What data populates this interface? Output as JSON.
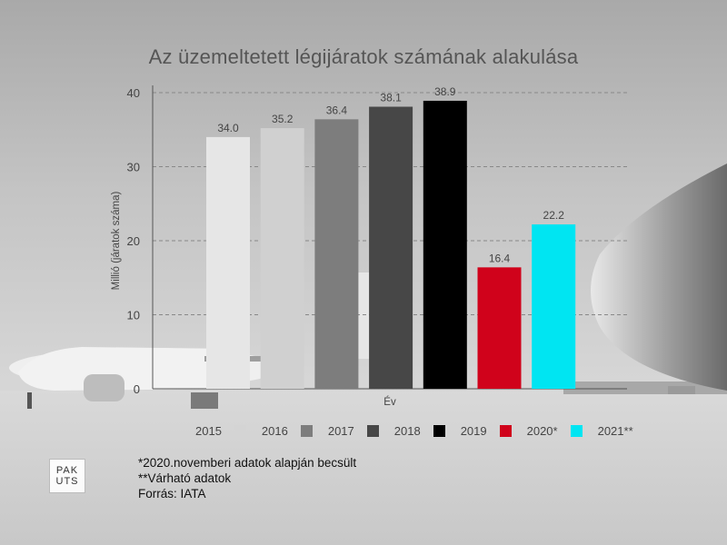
{
  "title": "Az üzemeltetett légijáratok számának alakulása",
  "chart_data": {
    "type": "bar",
    "title": "Az üzemeltetett légijáratok számának alakulása",
    "xlabel": "Év",
    "ylabel": "Millió (járatok száma)",
    "ylim": [
      0,
      40
    ],
    "yticks": [
      0,
      10,
      20,
      30,
      40
    ],
    "grid": true,
    "legend_position": "bottom",
    "categories": [
      "2015",
      "2016",
      "2017",
      "2018",
      "2019",
      "2020*",
      "2021**"
    ],
    "values": [
      34.0,
      35.2,
      36.4,
      38.1,
      38.9,
      16.4,
      22.2
    ],
    "value_labels": [
      "34.0",
      "35.2",
      "36.4",
      "38.1",
      "38.9",
      "16.4",
      "22.2"
    ],
    "colors": [
      "#e6e6e6",
      "#d0d0d0",
      "#7d7d7d",
      "#474747",
      "#000000",
      "#d0021b",
      "#00e5f2"
    ]
  },
  "legend": {
    "items": [
      {
        "label": "2015",
        "color": ""
      },
      {
        "label": "2016",
        "color": "#d4d4d4"
      },
      {
        "label": "2017",
        "color": "#7d7d7d"
      },
      {
        "label": "2018",
        "color": "#474747"
      },
      {
        "label": "2019",
        "color": "#000000"
      },
      {
        "label": "2020*",
        "color": "#d0021b"
      },
      {
        "label": "2021**",
        "color": "#00e5f2"
      }
    ]
  },
  "notes": {
    "line1": "*2020.novemberi adatok alapján becsült",
    "line2": "**Várható adatok",
    "line3": "Forrás: IATA"
  },
  "logo": {
    "line1": "PAK",
    "line2": "UTS"
  }
}
